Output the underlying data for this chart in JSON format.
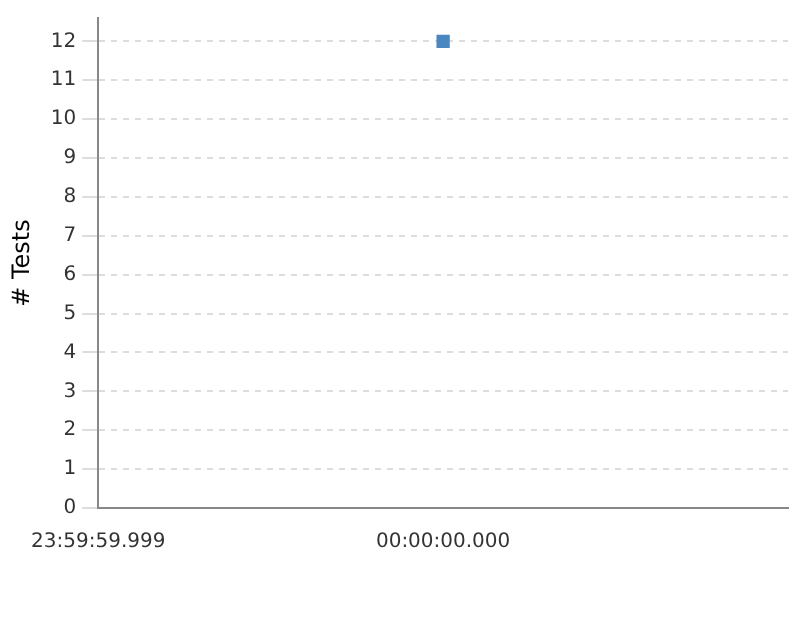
{
  "chart_data": {
    "type": "scatter",
    "ylabel": "# Tests",
    "categories": [
      "23:59:59.999",
      "00:00:00.000",
      null
    ],
    "series": [
      {
        "color": "#4a86c0",
        "values": [
          null,
          12,
          null
        ]
      }
    ],
    "ylim": [
      0,
      12.6
    ],
    "yticks": [
      0,
      1,
      2,
      3,
      4,
      5,
      6,
      7,
      8,
      9,
      10,
      11,
      12
    ],
    "grid": "y",
    "marker": "square",
    "legend": false
  }
}
